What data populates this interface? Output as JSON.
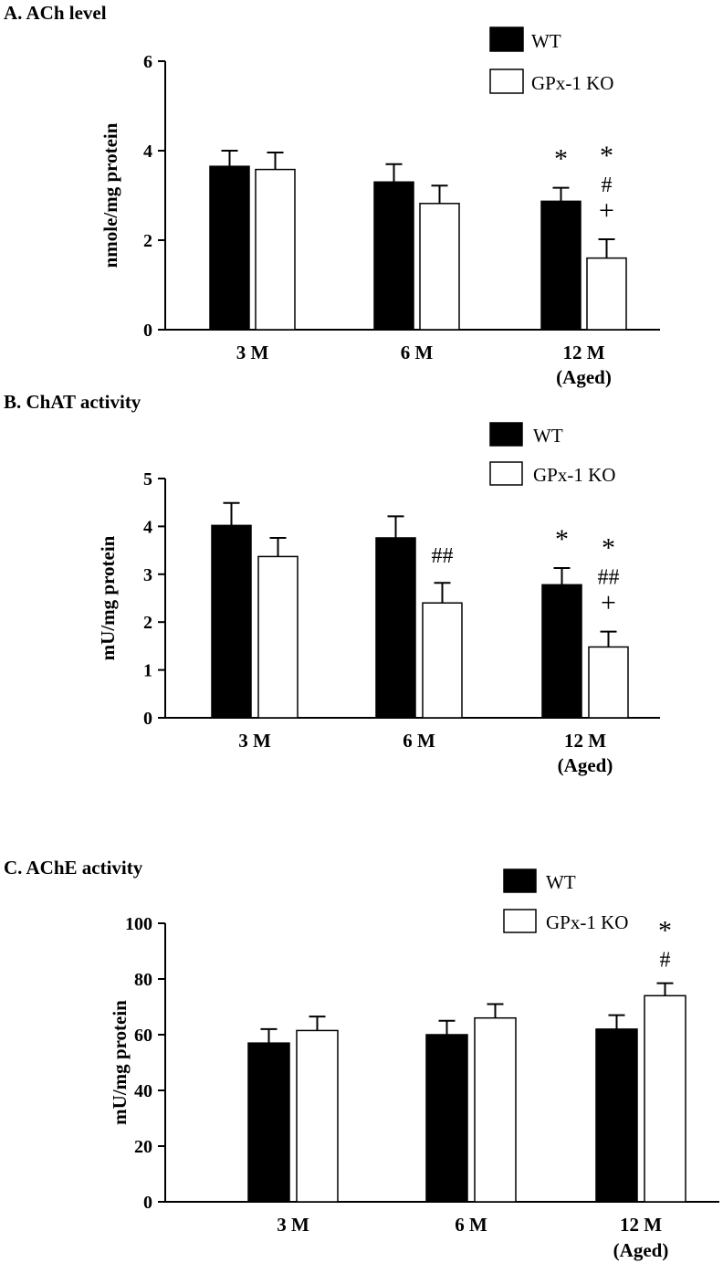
{
  "chart_data": [
    {
      "type": "bar",
      "title": "A. ACh level",
      "ylabel": "nmole/mg protein",
      "xlabel": "",
      "ylim": [
        0,
        6
      ],
      "yticks": [
        0,
        2,
        4,
        6
      ],
      "categories": [
        "3 M",
        "6 M",
        "12 M (Aged)"
      ],
      "category_labels": [
        [
          "3 M"
        ],
        [
          "6 M"
        ],
        [
          "12 M",
          "(Aged)"
        ]
      ],
      "series": [
        {
          "name": "WT",
          "values": [
            3.65,
            3.3,
            2.87
          ],
          "errors": [
            0.35,
            0.4,
            0.3
          ],
          "color": "#000000",
          "annotations": [
            [],
            [],
            [
              "*"
            ]
          ]
        },
        {
          "name": "GPx-1 KO",
          "values": [
            3.58,
            2.82,
            1.6
          ],
          "errors": [
            0.38,
            0.4,
            0.42
          ],
          "color": "#ffffff",
          "annotations": [
            [],
            [],
            [
              "*",
              "#",
              "+"
            ]
          ]
        }
      ],
      "legend": "top-right"
    },
    {
      "type": "bar",
      "title": "B. ChAT activity",
      "ylabel": "mU/mg protein",
      "xlabel": "",
      "ylim": [
        0,
        5
      ],
      "yticks": [
        0,
        1,
        2,
        3,
        4,
        5
      ],
      "categories": [
        "3 M",
        "6 M",
        "12 M (Aged)"
      ],
      "category_labels": [
        [
          "3 M"
        ],
        [
          "6 M"
        ],
        [
          "12 M",
          "(Aged)"
        ]
      ],
      "series": [
        {
          "name": "WT",
          "values": [
            4.02,
            3.76,
            2.78
          ],
          "errors": [
            0.47,
            0.45,
            0.35
          ],
          "color": "#000000",
          "annotations": [
            [],
            [],
            [
              "*"
            ]
          ]
        },
        {
          "name": "GPx-1 KO",
          "values": [
            3.37,
            2.4,
            1.48
          ],
          "errors": [
            0.39,
            0.42,
            0.32
          ],
          "color": "#ffffff",
          "annotations": [
            [],
            [
              "##"
            ],
            [
              "*",
              "##",
              "+"
            ]
          ]
        }
      ],
      "legend": "top-right"
    },
    {
      "type": "bar",
      "title": "C. AChE activity",
      "ylabel": "mU/mg protein",
      "xlabel": "",
      "ylim": [
        0,
        100
      ],
      "yticks": [
        0,
        20,
        40,
        60,
        80,
        100
      ],
      "categories": [
        "3 M",
        "6 M",
        "12 M (Aged)"
      ],
      "category_labels": [
        [
          "3 M"
        ],
        [
          "6 M"
        ],
        [
          "12 M",
          "(Aged)"
        ]
      ],
      "series": [
        {
          "name": "WT",
          "values": [
            57,
            60,
            62
          ],
          "errors": [
            5,
            5,
            5
          ],
          "color": "#000000",
          "annotations": [
            [],
            [],
            []
          ]
        },
        {
          "name": "GPx-1 KO",
          "values": [
            61.5,
            66,
            74
          ],
          "errors": [
            5,
            5,
            4.5
          ],
          "color": "#ffffff",
          "annotations": [
            [],
            [],
            [
              "*",
              "#"
            ]
          ]
        }
      ],
      "legend": "top-right"
    }
  ]
}
